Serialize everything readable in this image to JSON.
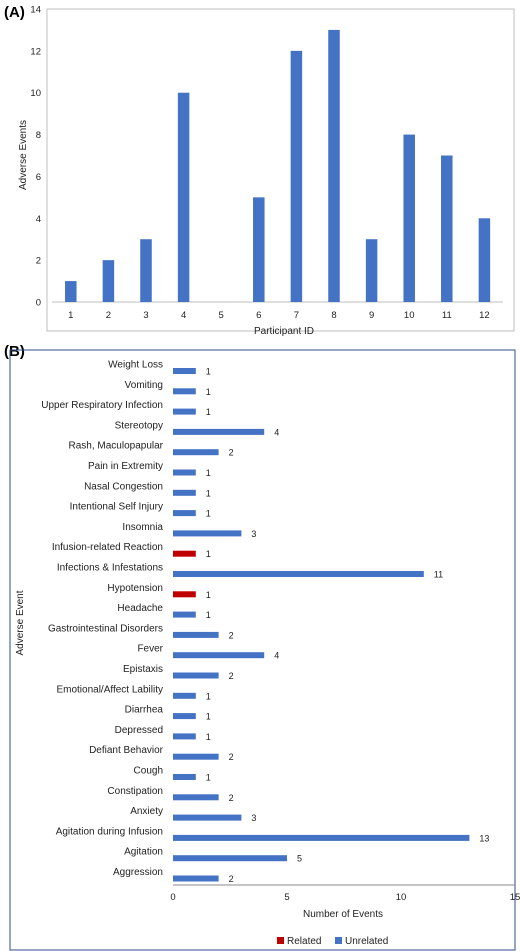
{
  "chart_data": [
    {
      "panel_label": "(A)",
      "type": "bar",
      "xlabel": "Participant ID",
      "ylabel": "Adverse Events",
      "ylim": [
        0,
        14
      ],
      "yticks": [
        0,
        2,
        4,
        6,
        8,
        10,
        12,
        14
      ],
      "grid": false,
      "categories": [
        "1",
        "2",
        "3",
        "4",
        "5",
        "6",
        "7",
        "8",
        "9",
        "10",
        "11",
        "12"
      ],
      "values": [
        1,
        2,
        3,
        10,
        0,
        5,
        12,
        13,
        3,
        8,
        7,
        4
      ],
      "colors": {
        "bar": "#4472C4",
        "frame": "#bfbfbf"
      }
    },
    {
      "panel_label": "(B)",
      "type": "bar",
      "orientation": "horizontal",
      "xlabel": "Number of Events",
      "ylabel": "Adverse Event",
      "xlim": [
        0,
        15
      ],
      "xticks": [
        0,
        5,
        10,
        15
      ],
      "grid": false,
      "legend_position": "bottom",
      "legend": [
        "Related",
        "Unrelated"
      ],
      "categories": [
        "Weight Loss",
        "Vomiting",
        "Upper Respiratory Infection",
        "Stereotopy",
        "Rash, Maculopapular",
        "Pain in Extremity",
        "Nasal Congestion",
        "Intentional Self Injury",
        "Insomnia",
        "Infusion-related Reaction",
        "Infections & Infestations",
        "Hypotension",
        "Headache",
        "Gastrointestinal Disorders",
        "Fever",
        "Epistaxis",
        "Emotional/Affect Lability",
        "Diarrhea",
        "Depressed",
        "Defiant Behavior",
        "Cough",
        "Constipation",
        "Anxiety",
        "Agitation during Infusion",
        "Agitation",
        "Aggression"
      ],
      "values": [
        1,
        1,
        1,
        4,
        2,
        1,
        1,
        1,
        3,
        1,
        11,
        1,
        1,
        2,
        4,
        2,
        1,
        1,
        1,
        2,
        1,
        2,
        3,
        13,
        5,
        2
      ],
      "relation": [
        "Unrelated",
        "Unrelated",
        "Unrelated",
        "Unrelated",
        "Unrelated",
        "Unrelated",
        "Unrelated",
        "Unrelated",
        "Unrelated",
        "Related",
        "Unrelated",
        "Related",
        "Unrelated",
        "Unrelated",
        "Unrelated",
        "Unrelated",
        "Unrelated",
        "Unrelated",
        "Unrelated",
        "Unrelated",
        "Unrelated",
        "Unrelated",
        "Unrelated",
        "Unrelated",
        "Unrelated",
        "Unrelated"
      ],
      "colors": {
        "Related": "#C00000",
        "Unrelated": "#4472C4",
        "frame": "#2e4e8c"
      }
    }
  ]
}
